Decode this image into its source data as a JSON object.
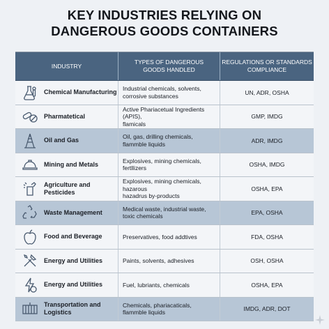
{
  "title_line1": "KEY INDUSTRIES RELYING ON",
  "title_line2": "DANGEROUS GOODS CONTAINERS",
  "headers": {
    "industry": "INDUSTRY",
    "types": "TYPES OF DANGEROUS\nGOODS HANDLED",
    "regs": "REGULATIONS OR STANDARDS\nCOMPLIANCE"
  },
  "rows": [
    {
      "industry": "Chemical Manufacturing",
      "icon": "flask-icon",
      "types": "Industrial chemicals, solvents,\ncorrosive substances",
      "regs": "UN, ADR, OSHA"
    },
    {
      "industry": "Pharmatetical",
      "icon": "pills-icon",
      "types": "Active Phariacetual Ingredients (APIS),\nflamicals",
      "regs": "GMP, IMDG"
    },
    {
      "industry": "Oil and Gas",
      "icon": "oil-rig-icon",
      "types": "Oil, gas, drilling chemicals,\nflammble liquids",
      "regs": "ADR, IMDG"
    },
    {
      "industry": "Mining and Metals",
      "icon": "hard-hat-icon",
      "types": "Explosives, mining chemicals, fertllizers",
      "regs": "OSHA, IMDG"
    },
    {
      "industry": "Agriculture and Pesticides",
      "icon": "sprayer-icon",
      "types": "Explosives, mining chemicals, hazarous\nhazadrus by-products",
      "regs": "OSHA, EPA"
    },
    {
      "industry": "Waste Management",
      "icon": "recycle-icon",
      "types": "Medical waste, industrial waste, toxic chemicals",
      "regs": "EPA, OSHA"
    },
    {
      "industry": "Food and Beverage",
      "icon": "apple-icon",
      "types": "Preservatives, food addtives",
      "regs": "FDA, OSHA"
    },
    {
      "industry": "Energy and Utilities",
      "icon": "tools-icon",
      "types": "Paints, solvents, adhesives",
      "regs": "OSH, OSHA"
    },
    {
      "industry": "Energy and Utilities",
      "icon": "energy-icon",
      "types": "Fuel, lubriants, chemicals",
      "regs": "OSHA, EPA"
    },
    {
      "industry": "Transportation and\nLogistics",
      "icon": "container-icon",
      "types": "Chemicals, phariacaticals,\nflammble liquids",
      "regs": "IMDG, ADR, DOT"
    }
  ],
  "row_styles": [
    "light",
    "light",
    "shade",
    "light",
    "light",
    "shade",
    "light",
    "light",
    "light",
    "shade"
  ],
  "colors": {
    "header_bg": "#4a6480",
    "shaded_row": "#b7c6d6",
    "light_row": "#f3f5f8"
  }
}
